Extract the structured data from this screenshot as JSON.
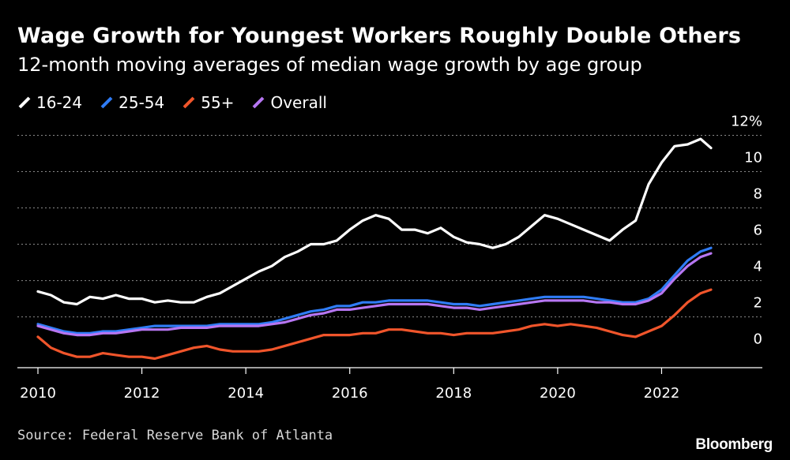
{
  "header": {
    "title": "Wage Growth for Youngest Workers Roughly Double Others",
    "subtitle": "12-month moving averages of median wage growth by age group"
  },
  "legend": [
    {
      "label": "16-24",
      "color": "#ffffff"
    },
    {
      "label": "25-54",
      "color": "#2f7cf6"
    },
    {
      "label": "55+",
      "color": "#f0552b"
    },
    {
      "label": "Overall",
      "color": "#b676f2"
    }
  ],
  "footer": {
    "source": "Source: Federal Reserve Bank of Atlanta",
    "brand": "Bloomberg"
  },
  "chart_data": {
    "type": "line",
    "title": "Wage Growth for Youngest Workers Roughly Double Others",
    "subtitle": "12-month moving averages of median wage growth by age group",
    "xlabel": "",
    "ylabel": "",
    "xlim": [
      2010,
      2023.3
    ],
    "ylim": [
      -0.8,
      12.5
    ],
    "x_ticks": [
      "2010",
      "2012",
      "2014",
      "2016",
      "2018",
      "2020",
      "2022"
    ],
    "x_tick_values": [
      2010,
      2012,
      2014,
      2016,
      2018,
      2020,
      2022
    ],
    "y_ticks": [
      "0",
      "2",
      "4",
      "6",
      "8",
      "10",
      "12%"
    ],
    "y_tick_values": [
      0,
      2,
      4,
      6,
      8,
      10,
      12
    ],
    "grid": true,
    "legend_position": "top-left",
    "series": [
      {
        "name": "16-24",
        "color": "#ffffff",
        "x": [
          2010.0,
          2010.25,
          2010.5,
          2010.75,
          2011.0,
          2011.25,
          2011.5,
          2011.75,
          2012.0,
          2012.25,
          2012.5,
          2012.75,
          2013.0,
          2013.25,
          2013.5,
          2013.75,
          2014.0,
          2014.25,
          2014.5,
          2014.75,
          2015.0,
          2015.25,
          2015.5,
          2015.75,
          2016.0,
          2016.25,
          2016.5,
          2016.75,
          2017.0,
          2017.25,
          2017.5,
          2017.75,
          2018.0,
          2018.25,
          2018.5,
          2018.75,
          2019.0,
          2019.25,
          2019.5,
          2019.75,
          2020.0,
          2020.25,
          2020.5,
          2020.75,
          2021.0,
          2021.25,
          2021.5,
          2021.75,
          2022.0,
          2022.25,
          2022.5,
          2022.75,
          2022.95
        ],
        "values": [
          3.4,
          3.2,
          2.8,
          2.7,
          3.1,
          3.0,
          3.2,
          3.0,
          3.0,
          2.8,
          2.9,
          2.8,
          2.8,
          3.1,
          3.3,
          3.7,
          4.1,
          4.5,
          4.8,
          5.3,
          5.6,
          6.0,
          6.0,
          6.2,
          6.8,
          7.3,
          7.6,
          7.4,
          6.8,
          6.8,
          6.6,
          6.9,
          6.4,
          6.1,
          6.0,
          5.8,
          6.0,
          6.4,
          7.0,
          7.6,
          7.4,
          7.1,
          6.8,
          6.5,
          6.2,
          6.8,
          7.3,
          9.3,
          10.5,
          11.4,
          11.5,
          11.8,
          11.3
        ]
      },
      {
        "name": "25-54",
        "color": "#2f7cf6",
        "x": [
          2010.0,
          2010.25,
          2010.5,
          2010.75,
          2011.0,
          2011.25,
          2011.5,
          2011.75,
          2012.0,
          2012.25,
          2012.5,
          2012.75,
          2013.0,
          2013.25,
          2013.5,
          2013.75,
          2014.0,
          2014.25,
          2014.5,
          2014.75,
          2015.0,
          2015.25,
          2015.5,
          2015.75,
          2016.0,
          2016.25,
          2016.5,
          2016.75,
          2017.0,
          2017.25,
          2017.5,
          2017.75,
          2018.0,
          2018.25,
          2018.5,
          2018.75,
          2019.0,
          2019.25,
          2019.5,
          2019.75,
          2020.0,
          2020.25,
          2020.5,
          2020.75,
          2021.0,
          2021.25,
          2021.5,
          2021.75,
          2022.0,
          2022.25,
          2022.5,
          2022.75,
          2022.95
        ],
        "values": [
          1.6,
          1.4,
          1.2,
          1.1,
          1.1,
          1.2,
          1.2,
          1.3,
          1.4,
          1.5,
          1.5,
          1.5,
          1.5,
          1.5,
          1.6,
          1.6,
          1.6,
          1.6,
          1.7,
          1.9,
          2.1,
          2.3,
          2.4,
          2.6,
          2.6,
          2.8,
          2.8,
          2.9,
          2.9,
          2.9,
          2.9,
          2.8,
          2.7,
          2.7,
          2.6,
          2.7,
          2.8,
          2.9,
          3.0,
          3.1,
          3.1,
          3.1,
          3.1,
          3.0,
          2.9,
          2.8,
          2.8,
          3.0,
          3.5,
          4.3,
          5.1,
          5.6,
          5.8
        ]
      },
      {
        "name": "55+",
        "color": "#f0552b",
        "x": [
          2010.0,
          2010.25,
          2010.5,
          2010.75,
          2011.0,
          2011.25,
          2011.5,
          2011.75,
          2012.0,
          2012.25,
          2012.5,
          2012.75,
          2013.0,
          2013.25,
          2013.5,
          2013.75,
          2014.0,
          2014.25,
          2014.5,
          2014.75,
          2015.0,
          2015.25,
          2015.5,
          2015.75,
          2016.0,
          2016.25,
          2016.5,
          2016.75,
          2017.0,
          2017.25,
          2017.5,
          2017.75,
          2018.0,
          2018.25,
          2018.5,
          2018.75,
          2019.0,
          2019.25,
          2019.5,
          2019.75,
          2020.0,
          2020.25,
          2020.5,
          2020.75,
          2021.0,
          2021.25,
          2021.5,
          2021.75,
          2022.0,
          2022.25,
          2022.5,
          2022.75,
          2022.95
        ],
        "values": [
          0.9,
          0.3,
          0.0,
          -0.2,
          -0.2,
          0.0,
          -0.1,
          -0.2,
          -0.2,
          -0.3,
          -0.1,
          0.1,
          0.3,
          0.4,
          0.2,
          0.1,
          0.1,
          0.1,
          0.2,
          0.4,
          0.6,
          0.8,
          1.0,
          1.0,
          1.0,
          1.1,
          1.1,
          1.3,
          1.3,
          1.2,
          1.1,
          1.1,
          1.0,
          1.1,
          1.1,
          1.1,
          1.2,
          1.3,
          1.5,
          1.6,
          1.5,
          1.6,
          1.5,
          1.4,
          1.2,
          1.0,
          0.9,
          1.2,
          1.5,
          2.1,
          2.8,
          3.3,
          3.5
        ]
      },
      {
        "name": "Overall",
        "color": "#b676f2",
        "x": [
          2010.0,
          2010.25,
          2010.5,
          2010.75,
          2011.0,
          2011.25,
          2011.5,
          2011.75,
          2012.0,
          2012.25,
          2012.5,
          2012.75,
          2013.0,
          2013.25,
          2013.5,
          2013.75,
          2014.0,
          2014.25,
          2014.5,
          2014.75,
          2015.0,
          2015.25,
          2015.5,
          2015.75,
          2016.0,
          2016.25,
          2016.5,
          2016.75,
          2017.0,
          2017.25,
          2017.5,
          2017.75,
          2018.0,
          2018.25,
          2018.5,
          2018.75,
          2019.0,
          2019.25,
          2019.5,
          2019.75,
          2020.0,
          2020.25,
          2020.5,
          2020.75,
          2021.0,
          2021.25,
          2021.5,
          2021.75,
          2022.0,
          2022.25,
          2022.5,
          2022.75,
          2022.95
        ],
        "values": [
          1.5,
          1.3,
          1.1,
          1.0,
          1.0,
          1.1,
          1.1,
          1.2,
          1.3,
          1.3,
          1.3,
          1.4,
          1.4,
          1.4,
          1.5,
          1.5,
          1.5,
          1.5,
          1.6,
          1.7,
          1.9,
          2.1,
          2.2,
          2.4,
          2.4,
          2.5,
          2.6,
          2.7,
          2.7,
          2.7,
          2.7,
          2.6,
          2.5,
          2.5,
          2.4,
          2.5,
          2.6,
          2.7,
          2.8,
          2.9,
          2.9,
          2.9,
          2.9,
          2.8,
          2.8,
          2.7,
          2.7,
          2.9,
          3.3,
          4.1,
          4.8,
          5.3,
          5.5
        ]
      }
    ]
  }
}
